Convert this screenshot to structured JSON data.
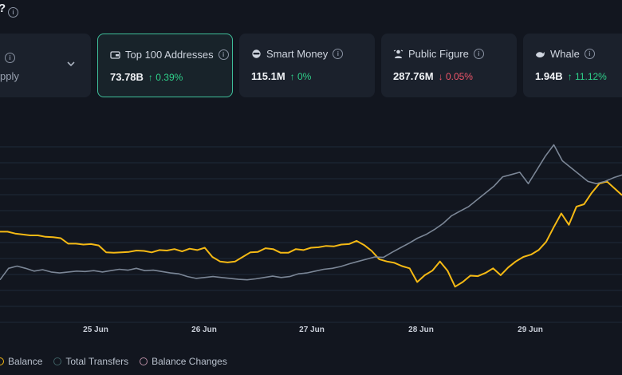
{
  "header": {
    "title_fragment": "?"
  },
  "partial_card": {
    "label": "pply"
  },
  "cards": [
    {
      "label": "Top 100 Addresses",
      "value": "73.78B",
      "change": "0.39%",
      "direction": "up",
      "icon": "wallet-icon",
      "selected": true
    },
    {
      "label": "Smart Money",
      "value": "115.1M",
      "change": "0%",
      "direction": "up",
      "icon": "smart-money-icon",
      "selected": false
    },
    {
      "label": "Public Figure",
      "value": "287.76M",
      "change": "0.05%",
      "direction": "down",
      "icon": "public-figure-icon",
      "selected": false
    },
    {
      "label": "Whale",
      "value": "1.94B",
      "change": "11.12%",
      "direction": "up",
      "icon": "whale-icon",
      "selected": false
    }
  ],
  "chart_data": {
    "type": "line",
    "x_ticks": [
      "25 Jun",
      "26 Jun",
      "27 Jun",
      "28 Jun",
      "29 Jun"
    ],
    "series": [
      {
        "name": "Balance",
        "color": "#f5b914",
        "values": [
          0.5,
          0.5,
          0.46,
          0.44,
          0.42,
          0.42,
          0.39,
          0.38,
          0.36,
          0.24,
          0.24,
          0.22,
          0.23,
          0.2,
          0.05,
          0.04,
          0.05,
          0.06,
          0.09,
          0.08,
          0.05,
          0.1,
          0.09,
          0.12,
          0.07,
          0.13,
          0.1,
          0.15,
          -0.05,
          -0.15,
          -0.17,
          -0.15,
          -0.05,
          0.05,
          0.06,
          0.14,
          0.12,
          0.04,
          0.04,
          0.12,
          0.1,
          0.15,
          0.16,
          0.19,
          0.18,
          0.22,
          0.23,
          0.3,
          0.21,
          0.08,
          -0.1,
          -0.15,
          -0.18,
          -0.25,
          -0.3,
          -0.6,
          -0.45,
          -0.35,
          -0.15,
          -0.35,
          -0.7,
          -0.6,
          -0.46,
          -0.47,
          -0.4,
          -0.3,
          -0.45,
          -0.28,
          -0.15,
          -0.05,
          0.0,
          0.1,
          0.28,
          0.6,
          0.9,
          0.65,
          1.05,
          1.1,
          1.35,
          1.55,
          1.6,
          1.45,
          1.3
        ]
      },
      {
        "name": "Total Transfers",
        "color": "#7b8696",
        "values": [
          -0.55,
          -0.3,
          -0.25,
          -0.3,
          -0.36,
          -0.33,
          -0.38,
          -0.4,
          -0.38,
          -0.36,
          -0.37,
          -0.35,
          -0.38,
          -0.35,
          -0.32,
          -0.34,
          -0.3,
          -0.35,
          -0.34,
          -0.37,
          -0.4,
          -0.42,
          -0.48,
          -0.52,
          -0.5,
          -0.48,
          -0.5,
          -0.52,
          -0.54,
          -0.55,
          -0.53,
          -0.5,
          -0.47,
          -0.5,
          -0.48,
          -0.42,
          -0.4,
          -0.36,
          -0.32,
          -0.3,
          -0.26,
          -0.2,
          -0.15,
          -0.1,
          -0.05,
          -0.06,
          0.05,
          0.15,
          0.25,
          0.36,
          0.44,
          0.55,
          0.68,
          0.85,
          0.95,
          1.05,
          1.2,
          1.35,
          1.5,
          1.7,
          1.75,
          1.8,
          1.55,
          1.85,
          2.15,
          2.4,
          2.05,
          1.9,
          1.75,
          1.6,
          1.55,
          1.6,
          1.68,
          1.74
        ]
      },
      {
        "name": "Balance Changes",
        "color": "#b58aa0"
      }
    ]
  },
  "legend": [
    {
      "label": "Balance",
      "color": "#f5b914"
    },
    {
      "label": "Total Transfers",
      "color": "#3e5f63"
    },
    {
      "label": "Balance Changes",
      "color": "#b58aa0"
    }
  ]
}
